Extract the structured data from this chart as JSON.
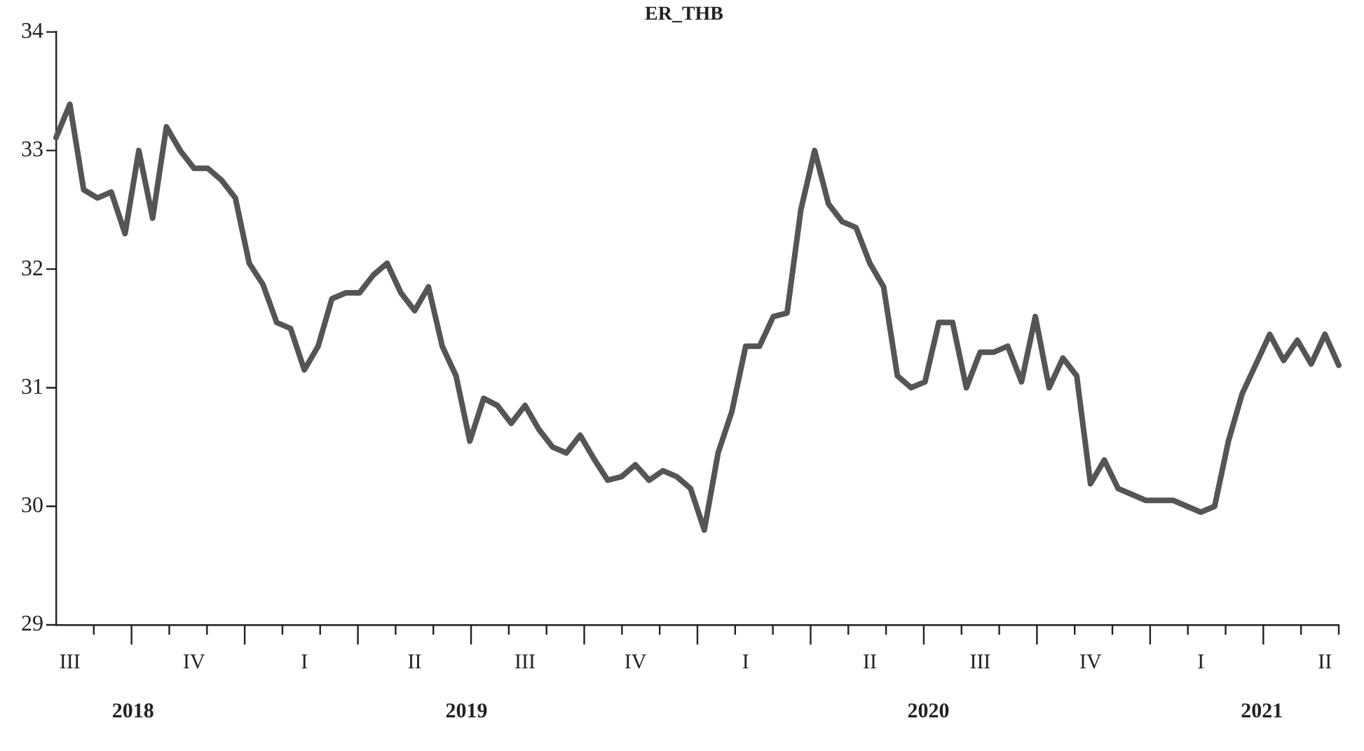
{
  "chart_data": {
    "type": "line",
    "title": "ER_THB",
    "categories": [
      null,
      "III",
      null,
      null,
      null,
      null,
      null,
      null,
      null,
      null,
      "IV",
      null,
      null,
      null,
      null,
      null,
      null,
      null,
      "I",
      null,
      null,
      null,
      null,
      null,
      null,
      null,
      "II",
      null,
      null,
      null,
      null,
      null,
      null,
      null,
      "III",
      null,
      null,
      null,
      null,
      null,
      null,
      null,
      "IV",
      null,
      null,
      null,
      null,
      null,
      null,
      null,
      "I",
      null,
      null,
      null,
      null,
      null,
      null,
      null,
      null,
      "II",
      null,
      null,
      null,
      null,
      null,
      null,
      null,
      "III",
      null,
      null,
      null,
      null,
      null,
      null,
      null,
      "IV",
      null,
      null,
      null,
      null,
      null,
      null,
      null,
      "I",
      null,
      null,
      null,
      null,
      null,
      null,
      null,
      null,
      "II",
      null
    ],
    "series": [
      {
        "color": "#555555",
        "values": [
          33.11,
          33.39,
          32.67,
          32.6,
          32.65,
          32.3,
          33.0,
          32.43,
          33.2,
          33.0,
          32.85,
          32.85,
          32.75,
          32.6,
          32.05,
          31.87,
          31.55,
          31.5,
          31.15,
          31.35,
          31.75,
          31.8,
          31.8,
          31.95,
          32.05,
          31.8,
          31.65,
          31.85,
          31.35,
          31.1,
          30.55,
          30.91,
          30.85,
          30.7,
          30.85,
          30.65,
          30.5,
          30.45,
          30.6,
          30.4,
          30.22,
          30.25,
          30.35,
          30.22,
          30.3,
          30.25,
          30.15,
          29.8,
          30.45,
          30.8,
          31.35,
          31.35,
          31.6,
          31.63,
          32.5,
          33.0,
          32.55,
          32.4,
          32.35,
          32.05,
          31.85,
          31.1,
          31.0,
          31.05,
          31.55,
          31.55,
          31.0,
          31.3,
          31.3,
          31.35,
          31.05,
          31.6,
          31.0,
          31.25,
          31.1,
          30.19,
          30.39,
          30.15,
          30.1,
          30.05,
          30.05,
          30.05,
          30.0,
          29.95,
          30.0,
          30.55,
          30.95,
          31.2,
          31.45,
          31.23,
          31.4,
          31.2,
          31.45,
          31.19
        ]
      }
    ],
    "ylim": [
      29,
      34
    ],
    "yticks": [
      29,
      30,
      31,
      32,
      33,
      34
    ],
    "annotations": [
      "2018",
      "2019",
      "2020",
      "2021"
    ],
    "grid": false,
    "legend": false,
    "marker": "none",
    "line_style": "solid"
  }
}
